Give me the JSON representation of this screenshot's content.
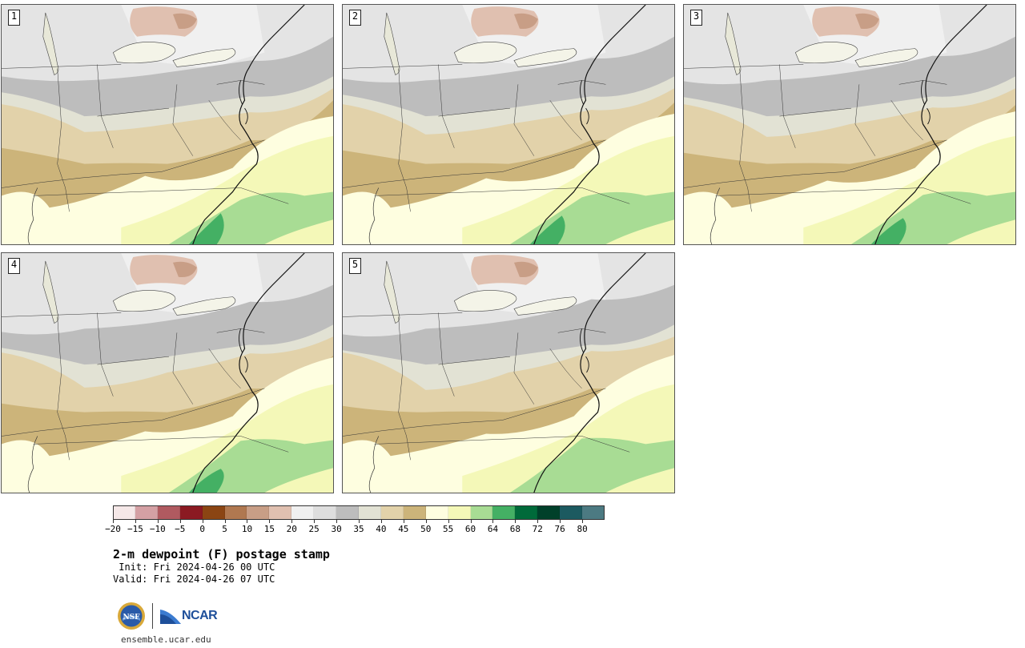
{
  "panels": [
    {
      "label": "1",
      "variant": 0
    },
    {
      "label": "2",
      "variant": 1
    },
    {
      "label": "3",
      "variant": 2
    },
    {
      "label": "4",
      "variant": 3
    },
    {
      "label": "5",
      "variant": 4
    }
  ],
  "colorbar": {
    "colors": [
      "#f5e8e8",
      "#d4a0a4",
      "#b05a60",
      "#8b1a22",
      "#8b4513",
      "#b07850",
      "#c89e86",
      "#e0c0b0",
      "#f0f0f0",
      "#dedede",
      "#bdbdbd",
      "#e2e2d4",
      "#e2d2aa",
      "#ccb47a",
      "#fefee0",
      "#f4f8b8",
      "#a8dc94",
      "#44b064",
      "#006a3a",
      "#00402a",
      "#1c5a60",
      "#4c7a82"
    ],
    "ticks": [
      "-20",
      "-15",
      "-10",
      "-5",
      "0",
      "5",
      "10",
      "15",
      "20",
      "25",
      "30",
      "35",
      "40",
      "45",
      "50",
      "55",
      "60",
      "64",
      "68",
      "72",
      "76",
      "80"
    ]
  },
  "title": "2-m dewpoint (F) postage stamp",
  "init": " Init: Fri 2024-04-26 00 UTC",
  "valid": "Valid: Fri 2024-04-26 07 UTC",
  "logos": {
    "nsf": "NSF",
    "ncar": "NCAR"
  },
  "url": "ensemble.ucar.edu"
}
